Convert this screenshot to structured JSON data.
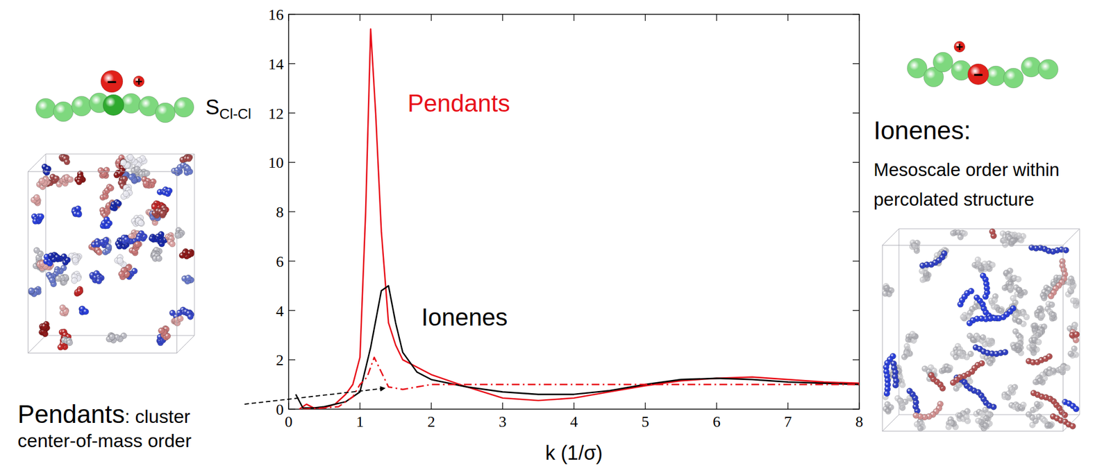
{
  "chart_data": {
    "type": "line",
    "x_label": "k (1/σ)",
    "y_label": {
      "text": "S",
      "sub": "Cl-Cl"
    },
    "xlim": [
      0,
      8
    ],
    "ylim": [
      0,
      16
    ],
    "xticks": [
      0,
      1,
      2,
      3,
      4,
      5,
      6,
      7,
      8
    ],
    "yticks": [
      0,
      2,
      4,
      6,
      8,
      10,
      12,
      14,
      16
    ],
    "series": [
      {
        "name": "Pendants",
        "color": "#e8101a",
        "line_style": "solid",
        "x": [
          0.15,
          0.25,
          0.35,
          0.5,
          0.65,
          0.8,
          0.9,
          1.0,
          1.08,
          1.15,
          1.22,
          1.3,
          1.4,
          1.5,
          1.6,
          1.8,
          2.0,
          2.5,
          3.0,
          3.5,
          4.0,
          4.5,
          5.0,
          5.5,
          6.0,
          6.5,
          7.0,
          7.5,
          8.0
        ],
        "values": [
          0.0,
          0.2,
          0.05,
          0.05,
          0.2,
          0.6,
          1.0,
          2.1,
          8.0,
          15.4,
          12.0,
          7.2,
          3.5,
          2.6,
          2.0,
          1.7,
          1.4,
          0.9,
          0.45,
          0.35,
          0.45,
          0.7,
          0.95,
          1.15,
          1.25,
          1.3,
          1.2,
          1.1,
          1.05
        ]
      },
      {
        "name": "Ionenes",
        "color": "#000000",
        "line_style": "solid",
        "x": [
          0.1,
          0.2,
          0.35,
          0.5,
          0.8,
          1.0,
          1.15,
          1.3,
          1.4,
          1.5,
          1.6,
          1.8,
          2.0,
          2.5,
          3.0,
          3.5,
          4.0,
          4.5,
          5.0,
          5.5,
          6.0,
          6.5,
          7.0,
          7.5,
          8.0
        ],
        "values": [
          0.6,
          0.05,
          0.05,
          0.1,
          0.3,
          0.7,
          2.5,
          4.8,
          5.0,
          3.5,
          2.3,
          1.5,
          1.2,
          0.9,
          0.7,
          0.6,
          0.6,
          0.75,
          1.0,
          1.2,
          1.25,
          1.2,
          1.1,
          1.05,
          1.0
        ]
      },
      {
        "color": "#e8101a",
        "line_style": "dashdot",
        "x": [
          0.2,
          0.5,
          0.7,
          0.9,
          1.0,
          1.1,
          1.2,
          1.3,
          1.4,
          1.6,
          1.8,
          2.0,
          2.5,
          3.0,
          4.0,
          5.0,
          6.0,
          7.0,
          8.0
        ],
        "values": [
          0.0,
          0.05,
          0.1,
          0.5,
          1.0,
          1.3,
          2.1,
          1.5,
          0.9,
          0.8,
          0.9,
          1.0,
          1.0,
          1.0,
          1.0,
          1.0,
          1.0,
          1.0,
          1.0
        ]
      }
    ],
    "annotation": {
      "head": "Pendants",
      "text": ": cluster center-of-mass order"
    },
    "side_note": {
      "title": "Ionenes:",
      "text": "Mesoscale order within percolated structure"
    },
    "molecule_charges": {
      "anion": "−",
      "cation": "+"
    }
  }
}
